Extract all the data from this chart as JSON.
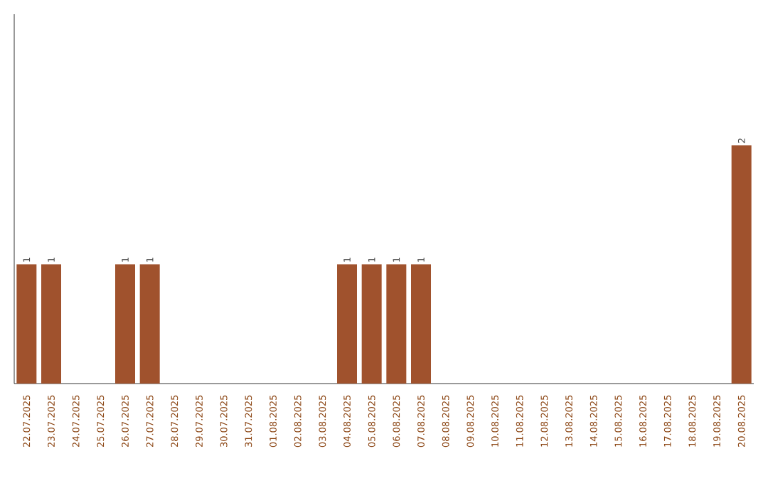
{
  "chart_data": {
    "type": "bar",
    "color": "#a0522d",
    "categories": [
      "22.07.2025",
      "23.07.2025",
      "24.07.2025",
      "25.07.2025",
      "26.07.2025",
      "27.07.2025",
      "28.07.2025",
      "29.07.2025",
      "30.07.2025",
      "31.07.2025",
      "01.08.2025",
      "02.08.2025",
      "03.08.2025",
      "04.08.2025",
      "05.08.2025",
      "06.08.2025",
      "07.08.2025",
      "08.08.2025",
      "09.08.2025",
      "10.08.2025",
      "11.08.2025",
      "12.08.2025",
      "13.08.2025",
      "14.08.2025",
      "15.08.2025",
      "16.08.2025",
      "17.08.2025",
      "18.08.2025",
      "19.08.2025",
      "20.08.2025"
    ],
    "values": [
      1,
      1,
      0,
      0,
      1,
      1,
      0,
      0,
      0,
      0,
      0,
      0,
      0,
      1,
      1,
      1,
      1,
      0,
      0,
      0,
      0,
      0,
      0,
      0,
      0,
      0,
      0,
      0,
      0,
      2
    ],
    "value_labels": [
      "1",
      "1",
      null,
      null,
      "1",
      "1",
      null,
      null,
      null,
      null,
      null,
      null,
      null,
      "1",
      "1",
      "1",
      "1",
      null,
      null,
      null,
      null,
      null,
      null,
      null,
      null,
      null,
      null,
      null,
      null,
      "2"
    ]
  }
}
